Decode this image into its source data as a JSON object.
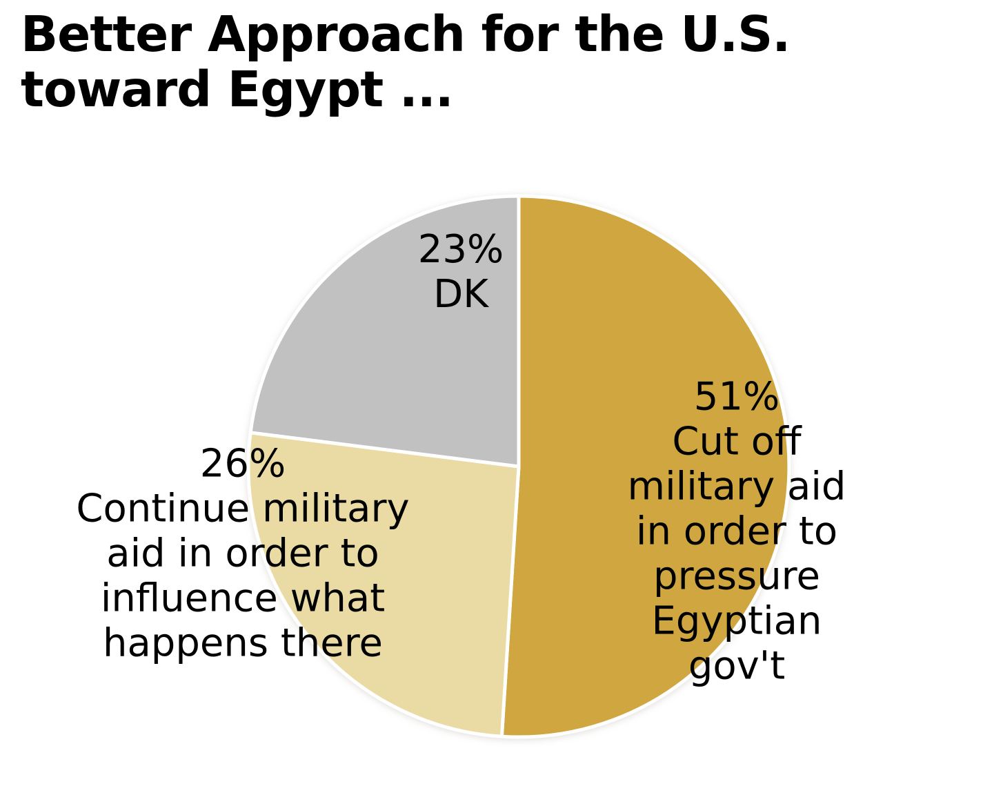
{
  "title": {
    "line1": "Better Approach for the U.S.",
    "line2": "toward Egypt ...",
    "full": "Better Approach for the U.S. toward Egypt ..."
  },
  "chart_data": {
    "type": "pie",
    "title": "Better Approach for the U.S. toward Egypt ...",
    "start_angle_deg": 0,
    "direction": "clockwise",
    "legend_position": "none",
    "separator_color": "#FFFFFF",
    "background_color": "#FFFFFF",
    "text_color": "#000000",
    "categories": [
      "Cut off military aid in order to pressure Egyptian gov't",
      "Continue military aid in order to influence what happens there",
      "DK"
    ],
    "values": [
      51,
      26,
      23
    ],
    "slices": [
      {
        "label": "Cut off military aid in order to pressure Egyptian gov't",
        "value": 51,
        "pct_label": "51%",
        "color": "#CFA640",
        "label_lines": [
          "51%",
          "Cut off military aid",
          "in order to pressure",
          "Egyptian gov't"
        ]
      },
      {
        "label": "Continue military aid in order to influence what happens there",
        "value": 26,
        "pct_label": "26%",
        "color": "#EADAA4",
        "label_lines": [
          "26%",
          "Continue military",
          "aid in order to",
          "influence what",
          "happens there"
        ]
      },
      {
        "label": "DK",
        "value": 23,
        "pct_label": "23%",
        "color": "#C1C1C1",
        "label_lines": [
          "23%",
          "DK"
        ]
      }
    ]
  }
}
